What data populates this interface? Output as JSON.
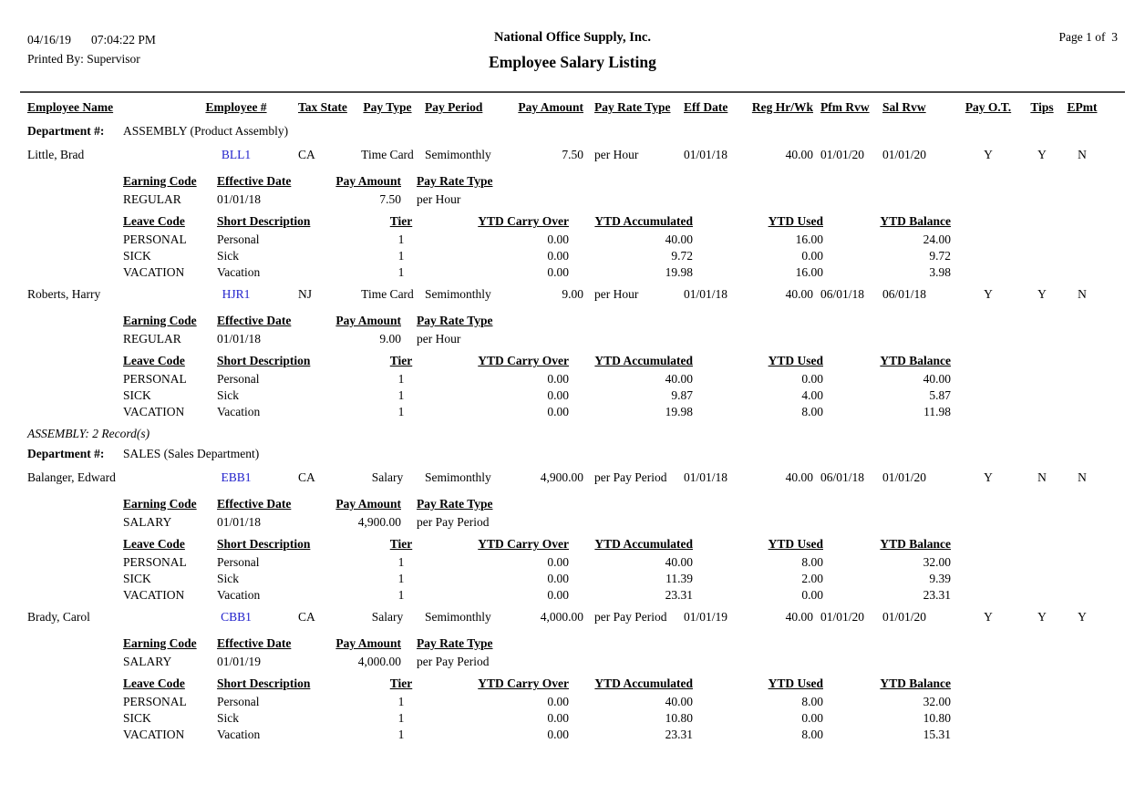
{
  "report": {
    "date": "04/16/19",
    "time": "07:04:22 PM",
    "printed_by": "Printed By: Supervisor",
    "company": "National Office Supply, Inc.",
    "title": "Employee Salary Listing",
    "page": "Page 1 of  3"
  },
  "colors": {
    "link": "#2222CC",
    "rule": "#4a4a4a"
  },
  "columns": {
    "main": [
      "Employee Name",
      "Employee #",
      "Tax State",
      "Pay Type",
      "Pay Period",
      "Pay Amount",
      "Pay Rate Type",
      "Eff Date",
      "Reg Hr/Wk",
      "Pfm Rvw",
      "Sal Rvw",
      "Pay O.T.",
      "Tips",
      "EPmt"
    ],
    "earning": [
      "Earning Code",
      "Effective Date",
      "Pay Amount",
      "Pay Rate Type"
    ],
    "leave": [
      "Leave Code",
      "Short Description",
      "Tier",
      "YTD Carry Over",
      "YTD Accumulated",
      "YTD Used",
      "YTD Balance"
    ]
  },
  "groups": [
    {
      "dept_label": "Department #:",
      "dept_name": "ASSEMBLY (Product Assembly)",
      "footer": "ASSEMBLY: 2 Record(s)",
      "employees": [
        {
          "name": "Little, Brad",
          "number": "BLL1",
          "tax_state": "CA",
          "pay_type": "Time Card",
          "pay_period": "Semimonthly",
          "pay_amount": "7.50",
          "pay_rate_type": "per Hour",
          "eff_date": "01/01/18",
          "reg_hr_wk": "40.00",
          "pfm_rvw": "01/01/20",
          "sal_rvw": "01/01/20",
          "pay_ot": "Y",
          "tips": "Y",
          "epmt": "N",
          "earnings": [
            {
              "code": "REGULAR",
              "effective_date": "01/01/18",
              "pay_amount": "7.50",
              "pay_rate_type": "per Hour"
            }
          ],
          "leaves": [
            {
              "code": "PERSONAL",
              "description": "Personal",
              "tier": "1",
              "carry_over": "0.00",
              "accumulated": "40.00",
              "used": "16.00",
              "balance": "24.00"
            },
            {
              "code": "SICK",
              "description": "Sick",
              "tier": "1",
              "carry_over": "0.00",
              "accumulated": "9.72",
              "used": "0.00",
              "balance": "9.72"
            },
            {
              "code": "VACATION",
              "description": "Vacation",
              "tier": "1",
              "carry_over": "0.00",
              "accumulated": "19.98",
              "used": "16.00",
              "balance": "3.98"
            }
          ]
        },
        {
          "name": "Roberts, Harry",
          "number": "HJR1",
          "tax_state": "NJ",
          "pay_type": "Time Card",
          "pay_period": "Semimonthly",
          "pay_amount": "9.00",
          "pay_rate_type": "per Hour",
          "eff_date": "01/01/18",
          "reg_hr_wk": "40.00",
          "pfm_rvw": "06/01/18",
          "sal_rvw": "06/01/18",
          "pay_ot": "Y",
          "tips": "Y",
          "epmt": "N",
          "earnings": [
            {
              "code": "REGULAR",
              "effective_date": "01/01/18",
              "pay_amount": "9.00",
              "pay_rate_type": "per Hour"
            }
          ],
          "leaves": [
            {
              "code": "PERSONAL",
              "description": "Personal",
              "tier": "1",
              "carry_over": "0.00",
              "accumulated": "40.00",
              "used": "0.00",
              "balance": "40.00"
            },
            {
              "code": "SICK",
              "description": "Sick",
              "tier": "1",
              "carry_over": "0.00",
              "accumulated": "9.87",
              "used": "4.00",
              "balance": "5.87"
            },
            {
              "code": "VACATION",
              "description": "Vacation",
              "tier": "1",
              "carry_over": "0.00",
              "accumulated": "19.98",
              "used": "8.00",
              "balance": "11.98"
            }
          ]
        }
      ]
    },
    {
      "dept_label": "Department #:",
      "dept_name": "SALES (Sales Department)",
      "footer": null,
      "employees": [
        {
          "name": "Balanger, Edward",
          "number": "EBB1",
          "tax_state": "CA",
          "pay_type": "Salary",
          "pay_period": "Semimonthly",
          "pay_amount": "4,900.00",
          "pay_rate_type": "per Pay Period",
          "eff_date": "01/01/18",
          "reg_hr_wk": "40.00",
          "pfm_rvw": "06/01/18",
          "sal_rvw": "01/01/20",
          "pay_ot": "Y",
          "tips": "N",
          "epmt": "N",
          "earnings": [
            {
              "code": "SALARY",
              "effective_date": "01/01/18",
              "pay_amount": "4,900.00",
              "pay_rate_type": "per Pay Period"
            }
          ],
          "leaves": [
            {
              "code": "PERSONAL",
              "description": "Personal",
              "tier": "1",
              "carry_over": "0.00",
              "accumulated": "40.00",
              "used": "8.00",
              "balance": "32.00"
            },
            {
              "code": "SICK",
              "description": "Sick",
              "tier": "1",
              "carry_over": "0.00",
              "accumulated": "11.39",
              "used": "2.00",
              "balance": "9.39"
            },
            {
              "code": "VACATION",
              "description": "Vacation",
              "tier": "1",
              "carry_over": "0.00",
              "accumulated": "23.31",
              "used": "0.00",
              "balance": "23.31"
            }
          ]
        },
        {
          "name": "Brady, Carol",
          "number": "CBB1",
          "tax_state": "CA",
          "pay_type": "Salary",
          "pay_period": "Semimonthly",
          "pay_amount": "4,000.00",
          "pay_rate_type": "per Pay Period",
          "eff_date": "01/01/19",
          "reg_hr_wk": "40.00",
          "pfm_rvw": "01/01/20",
          "sal_rvw": "01/01/20",
          "pay_ot": "Y",
          "tips": "Y",
          "epmt": "Y",
          "earnings": [
            {
              "code": "SALARY",
              "effective_date": "01/01/19",
              "pay_amount": "4,000.00",
              "pay_rate_type": "per Pay Period"
            }
          ],
          "leaves": [
            {
              "code": "PERSONAL",
              "description": "Personal",
              "tier": "1",
              "carry_over": "0.00",
              "accumulated": "40.00",
              "used": "8.00",
              "balance": "32.00"
            },
            {
              "code": "SICK",
              "description": "Sick",
              "tier": "1",
              "carry_over": "0.00",
              "accumulated": "10.80",
              "used": "0.00",
              "balance": "10.80"
            },
            {
              "code": "VACATION",
              "description": "Vacation",
              "tier": "1",
              "carry_over": "0.00",
              "accumulated": "23.31",
              "used": "8.00",
              "balance": "15.31"
            }
          ]
        }
      ]
    }
  ]
}
